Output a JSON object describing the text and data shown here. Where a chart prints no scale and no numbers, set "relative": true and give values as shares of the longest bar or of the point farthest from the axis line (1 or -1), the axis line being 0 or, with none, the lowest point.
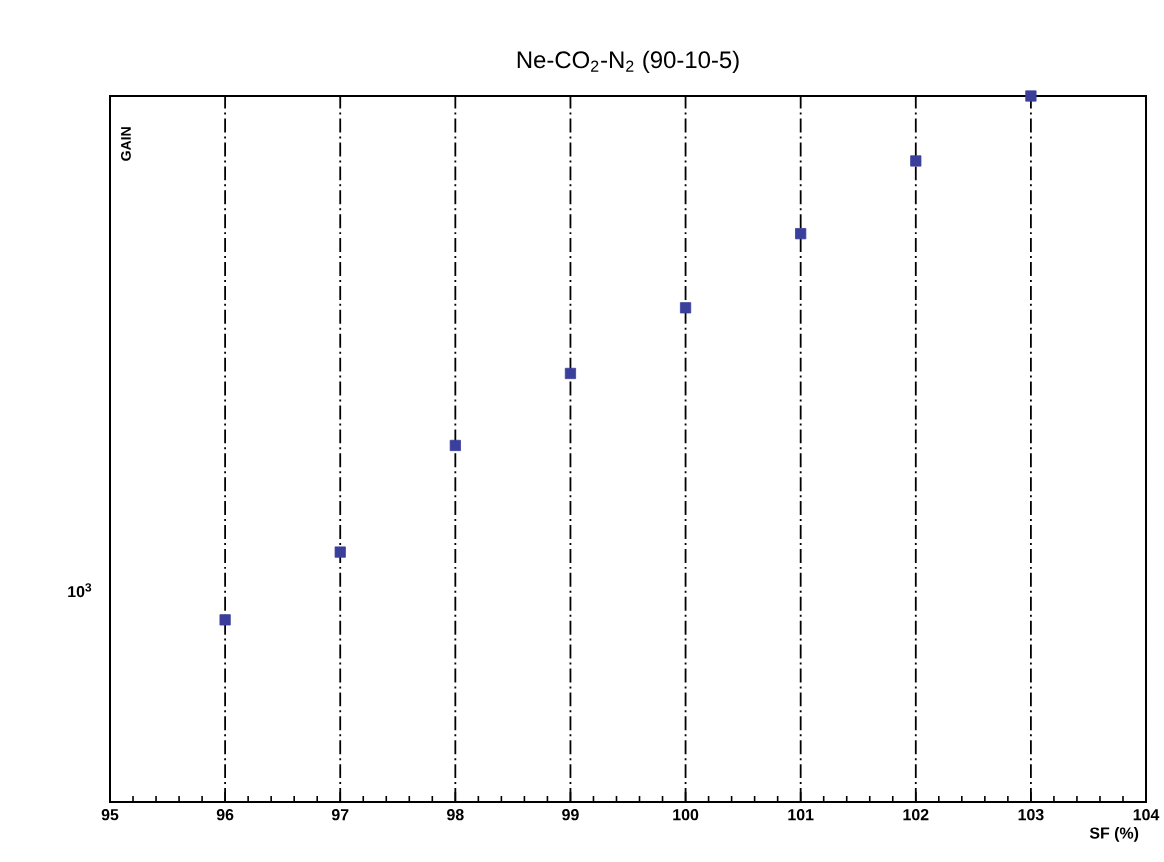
{
  "chart_data": {
    "type": "scatter",
    "title": "Ne-CO$_{2}$-N$_{2}$ (90-10-5)",
    "xlabel": "SF (%)",
    "ylabel": "GAIN",
    "x": [
      96,
      97,
      98,
      99,
      100,
      101,
      102,
      103
    ],
    "series": [
      {
        "color": "#3b3f9c",
        "values": [
          0.258,
          0.354,
          0.505,
          0.607,
          0.7,
          0.805,
          0.908,
          1.0
        ]
      }
    ],
    "relative": true,
    "xlim": [
      95,
      104
    ],
    "xticks": [
      95,
      96,
      97,
      98,
      99,
      100,
      101,
      102,
      103,
      104
    ],
    "annotations": [
      "10$^{3}$"
    ],
    "grid": "x",
    "marker": "square"
  }
}
